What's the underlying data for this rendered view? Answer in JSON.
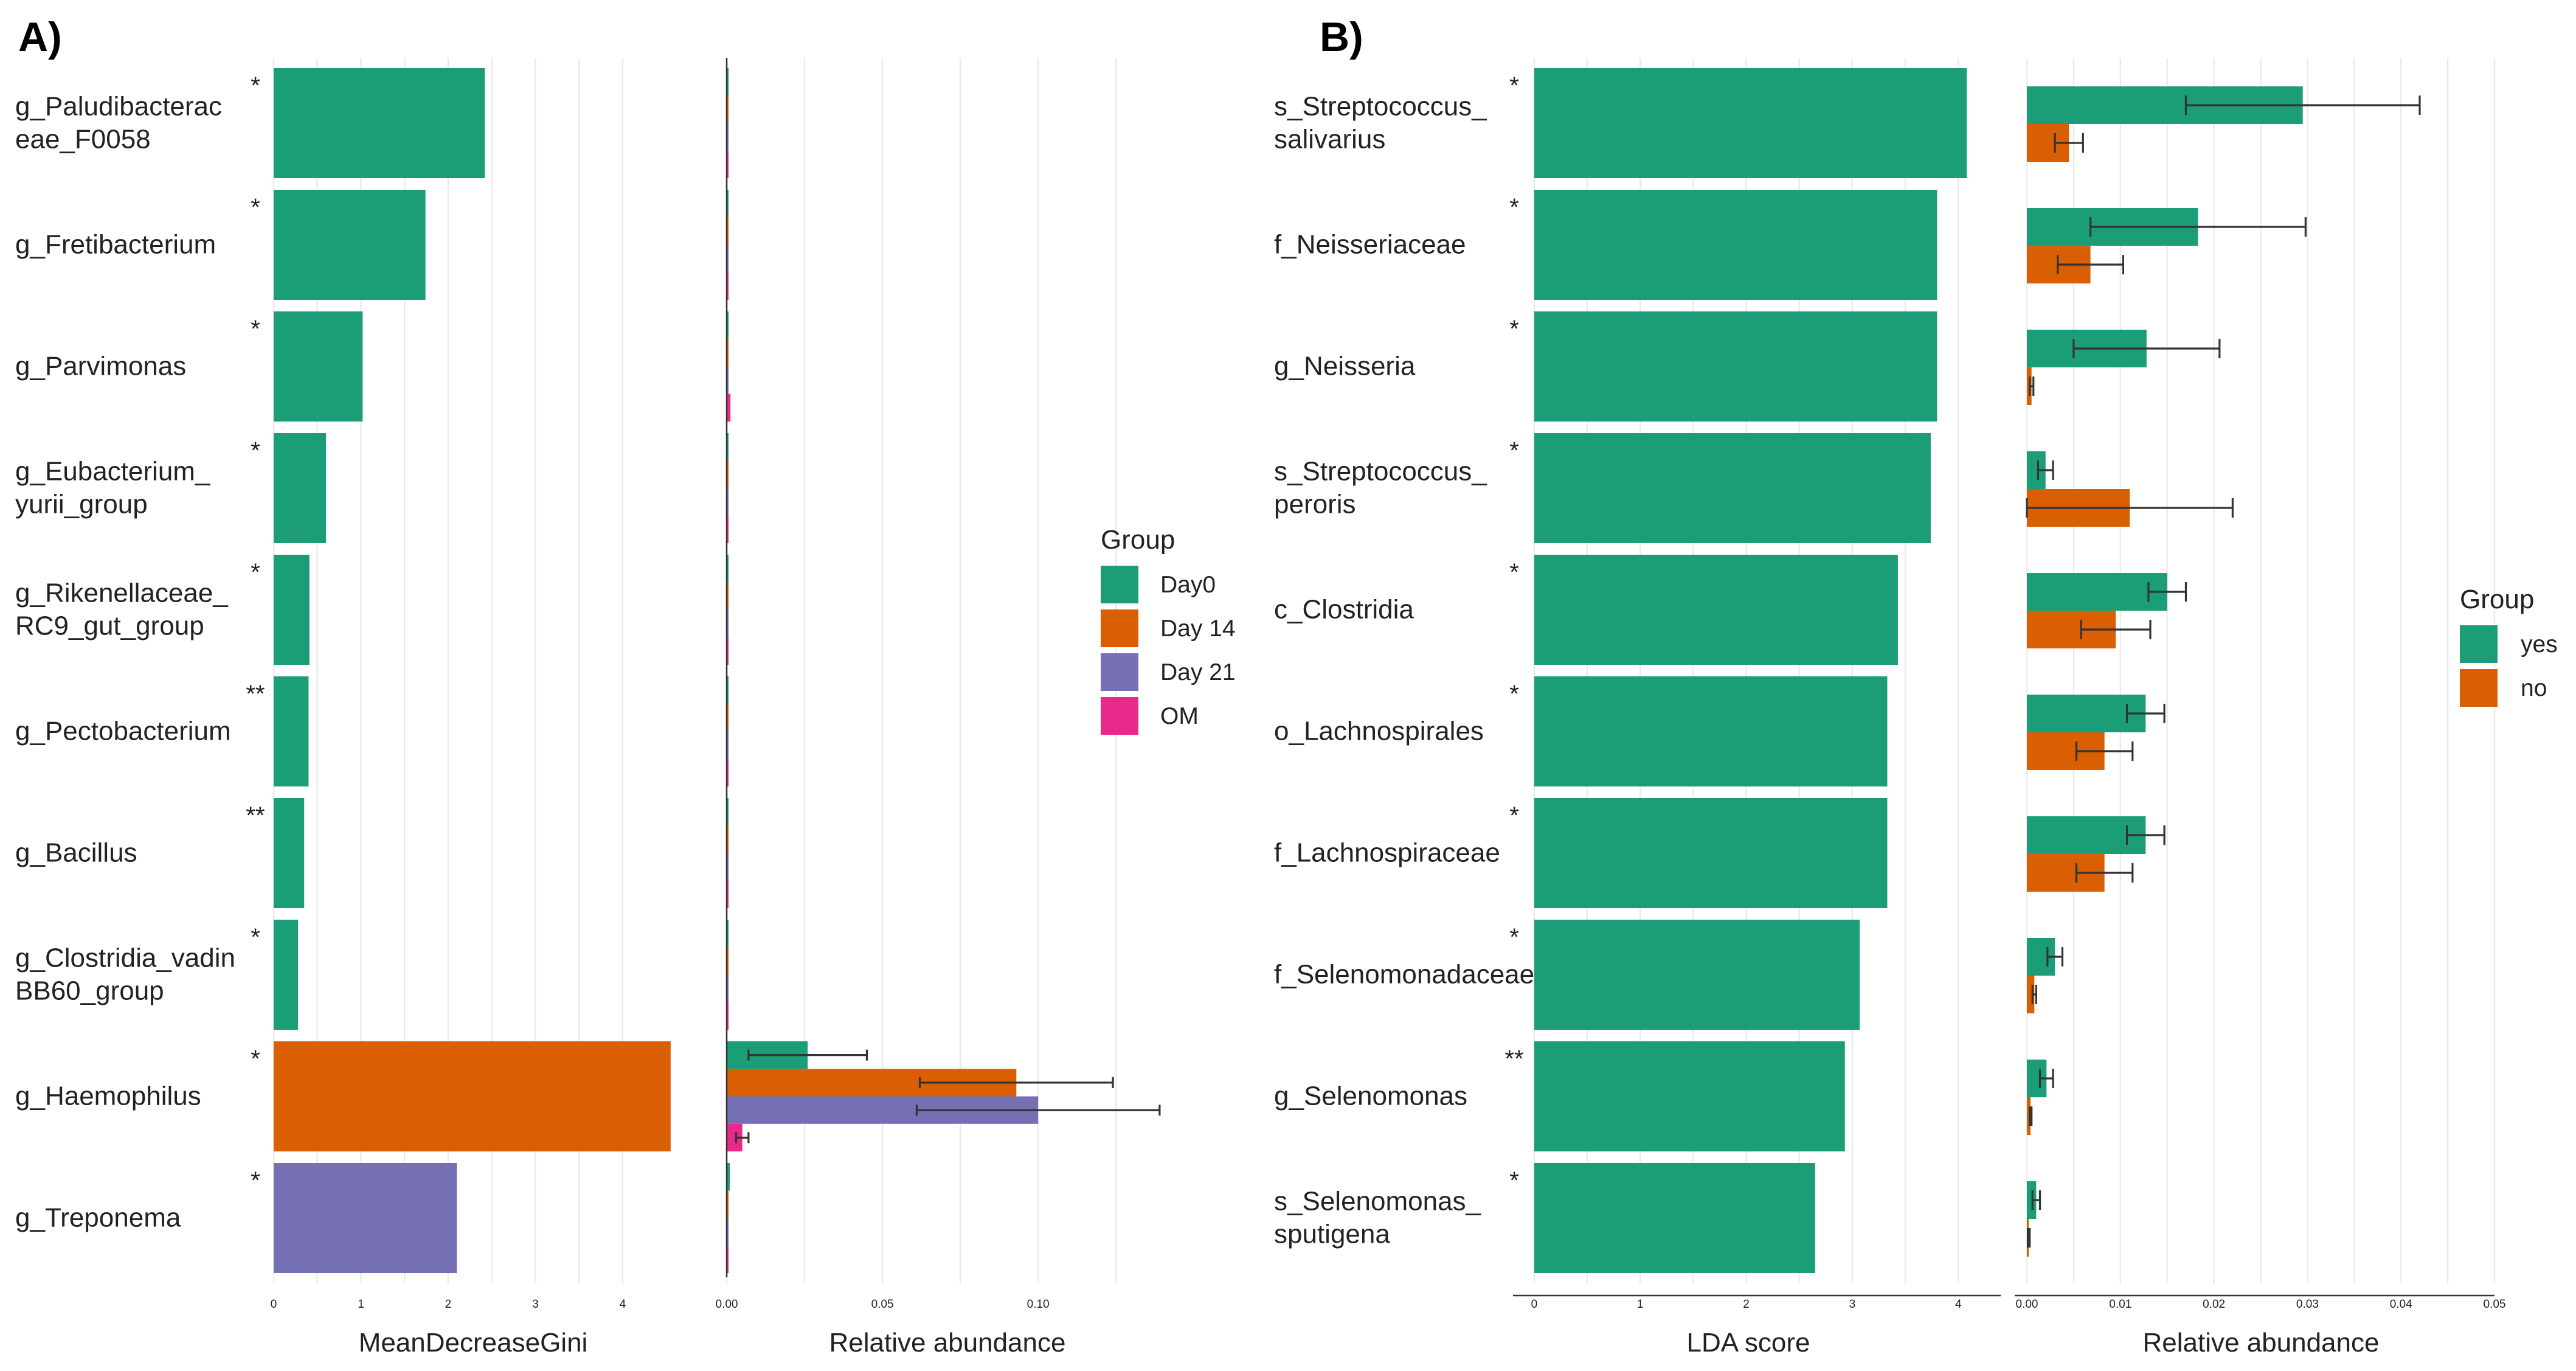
{
  "panels": [
    {
      "label": "A)"
    },
    {
      "label": "B)"
    }
  ],
  "legends": [
    {
      "title": "Group",
      "items": [
        {
          "label": "Day0",
          "color": "#1b9e77"
        },
        {
          "label": "Day 14",
          "color": "#d95f02"
        },
        {
          "label": "Day 21",
          "color": "#7570b3"
        },
        {
          "label": "OM",
          "color": "#e7298a"
        }
      ]
    },
    {
      "title": "Group",
      "items": [
        {
          "label": "yes",
          "color": "#1b9e77"
        },
        {
          "label": "no",
          "color": "#d95f02"
        }
      ]
    }
  ],
  "chart_data": [
    {
      "id": "A-importance",
      "type": "bar",
      "orientation": "horizontal",
      "xlabel": "MeanDecreaseGini",
      "xlim": [
        0,
        4.6
      ],
      "xticks": [
        0,
        1,
        2,
        3,
        4
      ],
      "categories": [
        {
          "label": [
            "g_Paludibacterac",
            "eae_F0058"
          ],
          "sig": "*"
        },
        {
          "label": [
            "g_Fretibacterium"
          ],
          "sig": "*"
        },
        {
          "label": [
            "g_Parvimonas"
          ],
          "sig": "*"
        },
        {
          "label": [
            "g_Eubacterium_",
            "yurii_group"
          ],
          "sig": "*"
        },
        {
          "label": [
            "g_Rikenellaceae_",
            "RC9_gut_group"
          ],
          "sig": "*"
        },
        {
          "label": [
            "g_Pectobacterium"
          ],
          "sig": "**"
        },
        {
          "label": [
            "g_Bacillus"
          ],
          "sig": "**"
        },
        {
          "label": [
            "g_Clostridia_vadin",
            "BB60_group"
          ],
          "sig": "*"
        },
        {
          "label": [
            "g_Haemophilus"
          ],
          "sig": "*"
        },
        {
          "label": [
            "g_Treponema"
          ],
          "sig": "*"
        }
      ],
      "values": [
        2.42,
        1.74,
        1.02,
        0.6,
        0.41,
        0.4,
        0.35,
        0.28,
        4.55,
        2.1
      ],
      "bar_groups": [
        "Day0",
        "Day0",
        "Day0",
        "Day0",
        "Day0",
        "Day0",
        "Day0",
        "Day0",
        "Day 14",
        "Day 21"
      ]
    },
    {
      "id": "A-abundance",
      "type": "bar",
      "orientation": "horizontal",
      "xlabel": "Relative abundance",
      "xlim": [
        0,
        0.14
      ],
      "xticks": [
        0.0,
        0.05,
        0.1
      ],
      "xtick_labels": [
        "0.00",
        "0.05",
        "0.10"
      ],
      "series_names": [
        "Day0",
        "Day 14",
        "Day 21",
        "OM"
      ],
      "values": [
        [
          0.0006,
          0.0004,
          0.0004,
          0.0004
        ],
        [
          0.0005,
          0.0003,
          0.0003,
          0.0003
        ],
        [
          0.0006,
          0.0003,
          0.0003,
          0.0012
        ],
        [
          0.0004,
          0.0003,
          0.0003,
          0.0003
        ],
        [
          0.0004,
          0.0003,
          0.0003,
          0.0003
        ],
        [
          0.0004,
          0.0003,
          0.0003,
          0.0003
        ],
        [
          0.0003,
          0.0003,
          0.0003,
          0.0003
        ],
        [
          0.0004,
          0.0003,
          0.0003,
          0.0003
        ],
        [
          0.026,
          0.093,
          0.1,
          0.005
        ],
        [
          0.001,
          0.0005,
          0.0005,
          0.0005
        ]
      ],
      "errors": [
        [
          0,
          0,
          0,
          0
        ],
        [
          0,
          0,
          0,
          0
        ],
        [
          0,
          0,
          0,
          0
        ],
        [
          0,
          0,
          0,
          0
        ],
        [
          0,
          0,
          0,
          0
        ],
        [
          0,
          0,
          0,
          0
        ],
        [
          0,
          0,
          0,
          0
        ],
        [
          0,
          0,
          0,
          0
        ],
        [
          0.019,
          0.031,
          0.039,
          0.002
        ],
        [
          0,
          0,
          0,
          0
        ]
      ]
    },
    {
      "id": "B-lda",
      "type": "bar",
      "orientation": "horizontal",
      "xlabel": "LDA score",
      "xlim": [
        -0.2,
        4.4
      ],
      "xticks": [
        0,
        1,
        2,
        3,
        4
      ],
      "categories": [
        {
          "label": [
            "s_Streptococcus_",
            "salivarius"
          ],
          "sig": "*"
        },
        {
          "label": [
            "f_Neisseriaceae"
          ],
          "sig": "*"
        },
        {
          "label": [
            "g_Neisseria"
          ],
          "sig": "*"
        },
        {
          "label": [
            "s_Streptococcus_",
            "peroris"
          ],
          "sig": "*"
        },
        {
          "label": [
            "c_Clostridia"
          ],
          "sig": "*"
        },
        {
          "label": [
            "o_Lachnospirales"
          ],
          "sig": "*"
        },
        {
          "label": [
            "f_Lachnospiraceae"
          ],
          "sig": "*"
        },
        {
          "label": [
            "f_Selenomonadaceae"
          ],
          "sig": "*"
        },
        {
          "label": [
            "g_Selenomonas"
          ],
          "sig": "**"
        },
        {
          "label": [
            "s_Selenomonas_",
            "sputigena"
          ],
          "sig": "*"
        }
      ],
      "values": [
        4.08,
        3.8,
        3.8,
        3.74,
        3.43,
        3.33,
        3.33,
        3.07,
        2.93,
        2.65
      ]
    },
    {
      "id": "B-abundance",
      "type": "bar",
      "orientation": "horizontal",
      "xlabel": "Relative abundance",
      "xlim": [
        0,
        0.05
      ],
      "xticks": [
        0.0,
        0.01,
        0.02,
        0.03,
        0.04,
        0.05
      ],
      "xtick_labels": [
        "0.00",
        "0.01",
        "0.02",
        "0.03",
        "0.04",
        "0.05"
      ],
      "series_names": [
        "yes",
        "no"
      ],
      "values": [
        [
          0.0295,
          0.0045
        ],
        [
          0.0183,
          0.0068
        ],
        [
          0.0128,
          0.0005
        ],
        [
          0.002,
          0.011
        ],
        [
          0.015,
          0.0095
        ],
        [
          0.0127,
          0.0083
        ],
        [
          0.0127,
          0.0083
        ],
        [
          0.003,
          0.0008
        ],
        [
          0.0021,
          0.0004
        ],
        [
          0.001,
          0.0002
        ]
      ],
      "errors": [
        [
          0.0125,
          0.0015
        ],
        [
          0.0115,
          0.0035
        ],
        [
          0.0078,
          0.0002
        ],
        [
          0.0008,
          0.011
        ],
        [
          0.002,
          0.0037
        ],
        [
          0.002,
          0.003
        ],
        [
          0.002,
          0.003
        ],
        [
          0.0008,
          0.0002
        ],
        [
          0.0007,
          0.0001
        ],
        [
          0.0004,
          0.0001
        ]
      ]
    }
  ]
}
